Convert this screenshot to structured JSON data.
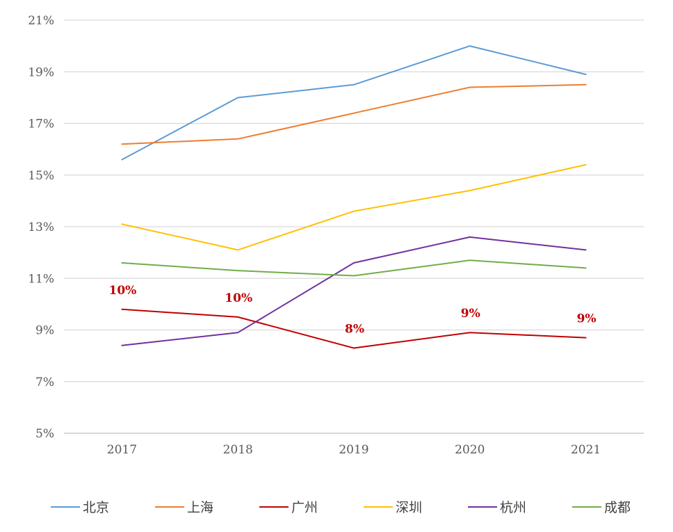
{
  "chart_data": {
    "type": "line",
    "title": "",
    "xlabel": "",
    "ylabel": "",
    "x": [
      "2017",
      "2018",
      "2019",
      "2020",
      "2021"
    ],
    "ylim": [
      5,
      21
    ],
    "yticks": [
      "5%",
      "7%",
      "9%",
      "11%",
      "13%",
      "15%",
      "17%",
      "19%",
      "21%"
    ],
    "ytick_values": [
      5,
      7,
      9,
      11,
      13,
      15,
      17,
      19,
      21
    ],
    "grid": "horizontal",
    "legend_position": "bottom",
    "series": [
      {
        "name": "北京",
        "color": "#5B9BD5",
        "values": [
          15.6,
          18.0,
          18.5,
          20.0,
          18.9
        ]
      },
      {
        "name": "上海",
        "color": "#ED7D31",
        "values": [
          16.2,
          16.4,
          17.4,
          18.4,
          18.5
        ]
      },
      {
        "name": "广州",
        "color": "#C00000",
        "values": [
          9.8,
          9.5,
          8.3,
          8.9,
          8.7
        ],
        "data_labels": [
          "10%",
          "10%",
          "8%",
          "9%",
          "9%"
        ]
      },
      {
        "name": "深圳",
        "color": "#FFC000",
        "values": [
          13.1,
          12.1,
          13.6,
          14.4,
          15.4
        ]
      },
      {
        "name": "杭州",
        "color": "#7030A0",
        "values": [
          8.4,
          8.9,
          11.6,
          12.6,
          12.1
        ]
      },
      {
        "name": "成都",
        "color": "#70AD47",
        "values": [
          11.6,
          11.3,
          11.1,
          11.7,
          11.4
        ]
      }
    ]
  }
}
